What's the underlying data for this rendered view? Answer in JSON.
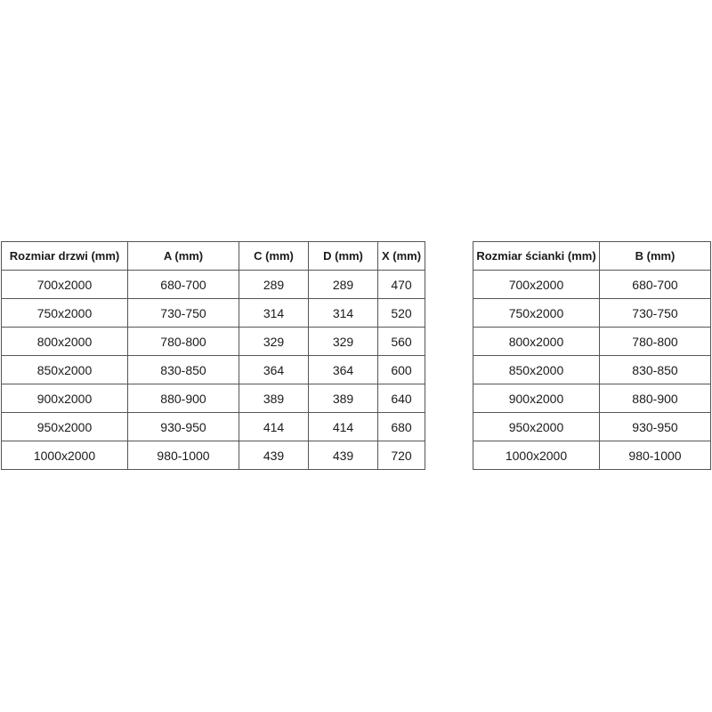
{
  "door_table": {
    "headers": [
      "Rozmiar drzwi (mm)",
      "A (mm)",
      "C (mm)",
      "D (mm)",
      "X (mm)"
    ],
    "rows": [
      [
        "700x2000",
        "680-700",
        "289",
        "289",
        "470"
      ],
      [
        "750x2000",
        "730-750",
        "314",
        "314",
        "520"
      ],
      [
        "800x2000",
        "780-800",
        "329",
        "329",
        "560"
      ],
      [
        "850x2000",
        "830-850",
        "364",
        "364",
        "600"
      ],
      [
        "900x2000",
        "880-900",
        "389",
        "389",
        "640"
      ],
      [
        "950x2000",
        "930-950",
        "414",
        "414",
        "680"
      ],
      [
        "1000x2000",
        "980-1000",
        "439",
        "439",
        "720"
      ]
    ]
  },
  "wall_table": {
    "headers": [
      "Rozmiar ścianki (mm)",
      "B (mm)"
    ],
    "rows": [
      [
        "700x2000",
        "680-700"
      ],
      [
        "750x2000",
        "730-750"
      ],
      [
        "800x2000",
        "780-800"
      ],
      [
        "850x2000",
        "830-850"
      ],
      [
        "900x2000",
        "880-900"
      ],
      [
        "950x2000",
        "930-950"
      ],
      [
        "1000x2000",
        "980-1000"
      ]
    ]
  }
}
